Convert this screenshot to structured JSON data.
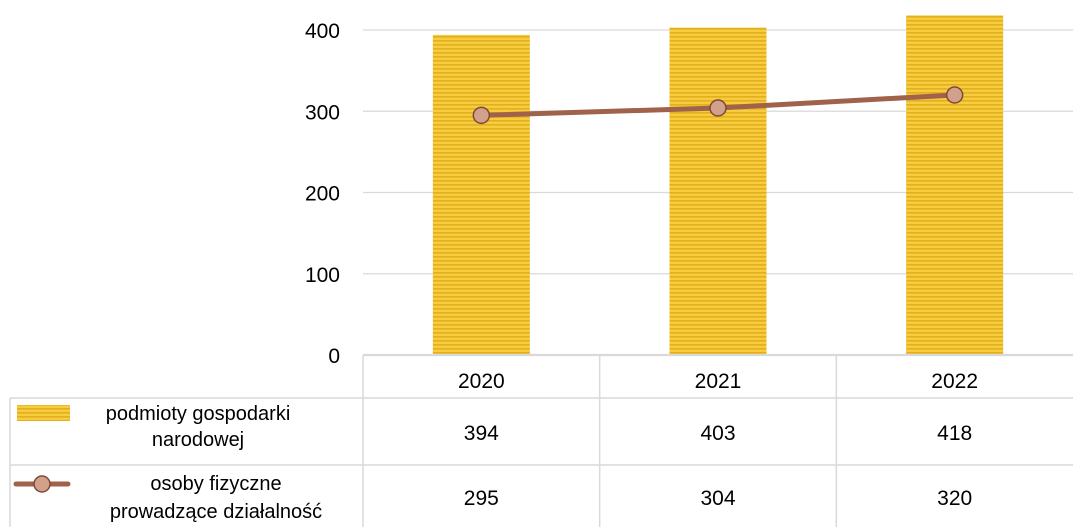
{
  "chart_data": {
    "type": "bar",
    "categories": [
      "2020",
      "2021",
      "2022"
    ],
    "series": [
      {
        "name": "podmioty gospodarki narodowej",
        "legend_lines": [
          "podmioty gospodarki",
          "narodowej"
        ],
        "kind": "bar",
        "color": "#F2C12E",
        "values": [
          394,
          403,
          418
        ],
        "value_labels": [
          "394",
          "403",
          "418"
        ]
      },
      {
        "name": "osoby fizyczne prowadzące działalność",
        "legend_lines": [
          "osoby fizyczne",
          "prowadzące działalność"
        ],
        "kind": "line",
        "color": "#A0624A",
        "marker_color": "#D3A08C",
        "values": [
          295,
          304,
          320
        ],
        "value_labels": [
          "295",
          "304",
          "320"
        ]
      }
    ],
    "ylim": [
      0,
      400
    ],
    "yticks": [
      "0",
      "100",
      "200",
      "300",
      "400"
    ],
    "grid": true,
    "legend": "data-table"
  }
}
